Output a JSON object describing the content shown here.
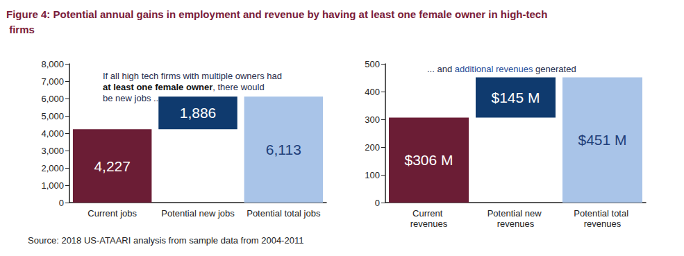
{
  "title": "Figure 4: Potential annual gains in employment and revenue by having at least one female owner in high-tech firms",
  "source": "Source: 2018 US-ATAARI analysis from sample data from 2004-2011",
  "chart_data": [
    {
      "type": "waterfall",
      "annotation": [
        [
          "If all high tech firms with multiple owners had"
        ],
        [
          "at least one female owner",
          ", there would"
        ],
        [
          "be new jobs ..."
        ]
      ],
      "categories": [
        "Current jobs",
        "Potential new jobs",
        "Potential total jobs"
      ],
      "values": [
        4227,
        1886,
        6113
      ],
      "value_labels": [
        "4,227",
        "1,886",
        "6,113"
      ],
      "colors": [
        "#6b1d35",
        "#0f3a6e",
        "#a9c4e8"
      ],
      "ylim": [
        0,
        8000
      ],
      "yticks": [
        0,
        {
          "value": 1000,
          "label": "1,000"
        },
        {
          "value": 2000,
          "label": "2,000"
        },
        {
          "value": 3000,
          "label": "3,000"
        },
        {
          "value": 4000,
          "label": "4,000"
        },
        {
          "value": 5000,
          "label": "5,000"
        },
        {
          "value": 6000,
          "label": "6,000"
        },
        {
          "value": 7000,
          "label": "7,000"
        },
        {
          "value": 8000,
          "label": "8,000"
        }
      ],
      "data_labels": true,
      "grid": false
    },
    {
      "type": "waterfall",
      "annotation": [
        [
          "... and ",
          "additional revenues",
          " generated"
        ]
      ],
      "categories": [
        "Current revenues",
        "Potential new revenues",
        "Potential total revenues"
      ],
      "values": [
        306,
        145,
        451
      ],
      "value_labels": [
        "$306 M",
        "$145 M",
        "$451 M"
      ],
      "colors": [
        "#6b1d35",
        "#0f3a6e",
        "#a9c4e8"
      ],
      "ylim": [
        0,
        500
      ],
      "yticks": [
        0,
        100,
        200,
        300,
        400,
        500
      ],
      "data_labels": true,
      "grid": false
    }
  ]
}
